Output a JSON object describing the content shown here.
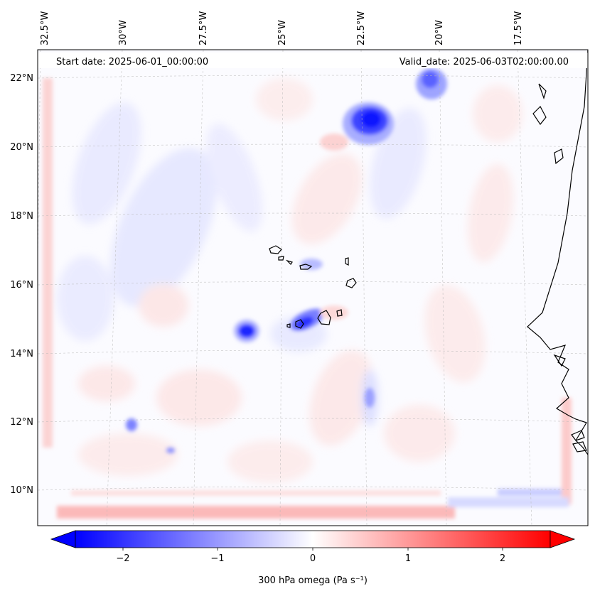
{
  "header": {
    "start_date": "Start date: 2025-06-01_00:00:00",
    "valid_date": "Valid_date: 2025-06-03T02:00:00.00"
  },
  "map": {
    "projection": "lambert-conformal",
    "lon_range": [
      -33.0,
      -15.5
    ],
    "lat_range": [
      8.8,
      22.8
    ],
    "lon_ticks": [
      -32.5,
      -30,
      -27.5,
      -25,
      -22.5,
      -20,
      -17.5
    ],
    "lat_ticks": [
      10,
      12,
      14,
      16,
      18,
      20,
      22
    ],
    "lon_tick_labels": [
      "32.5°W",
      "30°W",
      "27.5°W",
      "25°W",
      "22.5°W",
      "20°W",
      "17.5°W"
    ],
    "lat_tick_labels": [
      "10°N",
      "12°N",
      "14°N",
      "16°N",
      "18°N",
      "20°N",
      "22°N"
    ],
    "gridlines": true,
    "features": [
      {
        "name": "strong ascent cell NE",
        "lon": -22.2,
        "lat": 20.8,
        "omega": -2.3
      },
      {
        "name": "ascent cell N edge",
        "lon": -20.0,
        "lat": 21.9,
        "omega": -1.4
      },
      {
        "name": "ascent cell west of Cape Verde",
        "lon": -25.8,
        "lat": 14.5,
        "omega": -2.4
      },
      {
        "name": "ascent cell near Fogo",
        "lon": -24.0,
        "lat": 14.8,
        "omega": -1.6
      },
      {
        "name": "ascent streak SE",
        "lon": -17.2,
        "lat": 9.5,
        "omega": -0.7
      },
      {
        "name": "weak ascent SW",
        "lon": -29.7,
        "lat": 11.7,
        "omega": -0.9
      }
    ]
  },
  "colorbar": {
    "label": "300 hPa omega (Pa s⁻¹)",
    "min": -2.5,
    "max": 2.5,
    "ticks": [
      -2,
      -1,
      0,
      1,
      2
    ],
    "tick_labels": [
      "−2",
      "−1",
      "0",
      "1",
      "2"
    ],
    "extend": "both",
    "colormap": "bwr",
    "color_low": "#0000ff",
    "color_mid": "#ffffff",
    "color_high": "#ff0000"
  }
}
